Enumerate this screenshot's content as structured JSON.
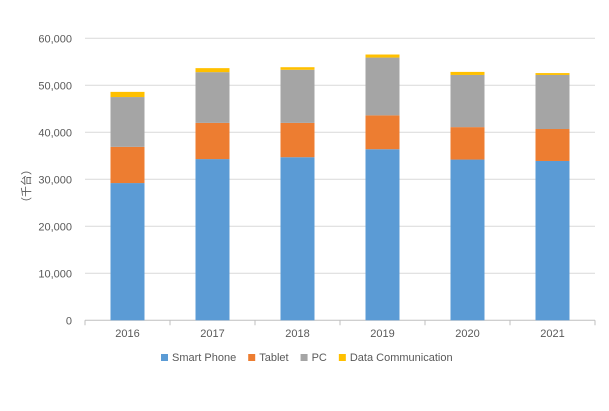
{
  "chart_data": {
    "type": "bar",
    "stacked": true,
    "title": "",
    "xlabel": "",
    "ylabel": "（千台）",
    "ylim": [
      0,
      60000
    ],
    "yticks": [
      "0",
      "10,000",
      "20,000",
      "30,000",
      "40,000",
      "50,000",
      "60,000"
    ],
    "grid": true,
    "legend_position": "bottom",
    "categories": [
      "2016",
      "2017",
      "2018",
      "2019",
      "2020",
      "2021"
    ],
    "series": [
      {
        "name": "Smart Phone",
        "color": "#5B9BD5",
        "values": [
          29200,
          34300,
          34700,
          36400,
          34200,
          33900
        ]
      },
      {
        "name": "Tablet",
        "color": "#ED7D31",
        "values": [
          7700,
          7700,
          7300,
          7200,
          6900,
          6800
        ]
      },
      {
        "name": "PC",
        "color": "#A5A5A5",
        "values": [
          10600,
          10800,
          11300,
          12300,
          11100,
          11500
        ]
      },
      {
        "name": "Data Communication",
        "color": "#FFC000",
        "values": [
          1100,
          850,
          550,
          650,
          650,
          400
        ]
      }
    ]
  }
}
